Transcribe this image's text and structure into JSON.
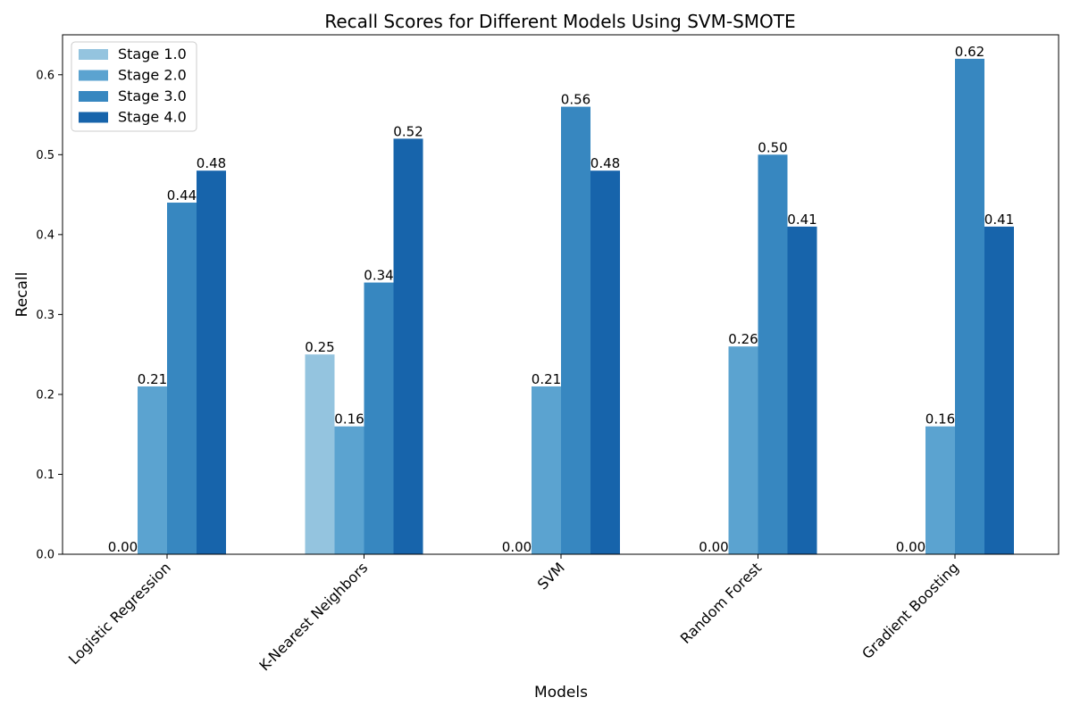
{
  "chart_data": {
    "type": "bar",
    "title": "Recall Scores for Different Models Using SVM-SMOTE",
    "xlabel": "Models",
    "ylabel": "Recall",
    "categories": [
      "Logistic Regression",
      "K-Nearest Neighbors",
      "SVM",
      "Random Forest",
      "Gradient Boosting"
    ],
    "series": [
      {
        "name": "Stage 1.0",
        "values": [
          0.0,
          0.25,
          0.0,
          0.0,
          0.0
        ],
        "labels": [
          "0.00",
          "0.25",
          "0.00",
          "0.00",
          "0.00"
        ]
      },
      {
        "name": "Stage 2.0",
        "values": [
          0.21,
          0.16,
          0.21,
          0.26,
          0.16
        ],
        "labels": [
          "0.21",
          "0.16",
          "0.21",
          "0.26",
          "0.16"
        ]
      },
      {
        "name": "Stage 3.0",
        "values": [
          0.44,
          0.34,
          0.56,
          0.5,
          0.62
        ],
        "labels": [
          "0.44",
          "0.34",
          "0.56",
          "0.50",
          "0.62"
        ]
      },
      {
        "name": "Stage 4.0",
        "values": [
          0.48,
          0.52,
          0.48,
          0.41,
          0.41
        ],
        "labels": [
          "0.48",
          "0.52",
          "0.48",
          "0.41",
          "0.41"
        ]
      }
    ],
    "colors": [
      "#94c4df",
      "#5ba3d0",
      "#3787c0",
      "#1764ab"
    ],
    "ylim": [
      0,
      0.65
    ],
    "yticks": [
      "0.0",
      "0.1",
      "0.2",
      "0.3",
      "0.4",
      "0.5",
      "0.6"
    ],
    "ytick_values": [
      0.0,
      0.1,
      0.2,
      0.3,
      0.4,
      0.5,
      0.6
    ],
    "grid": false,
    "legend": "top-left"
  }
}
